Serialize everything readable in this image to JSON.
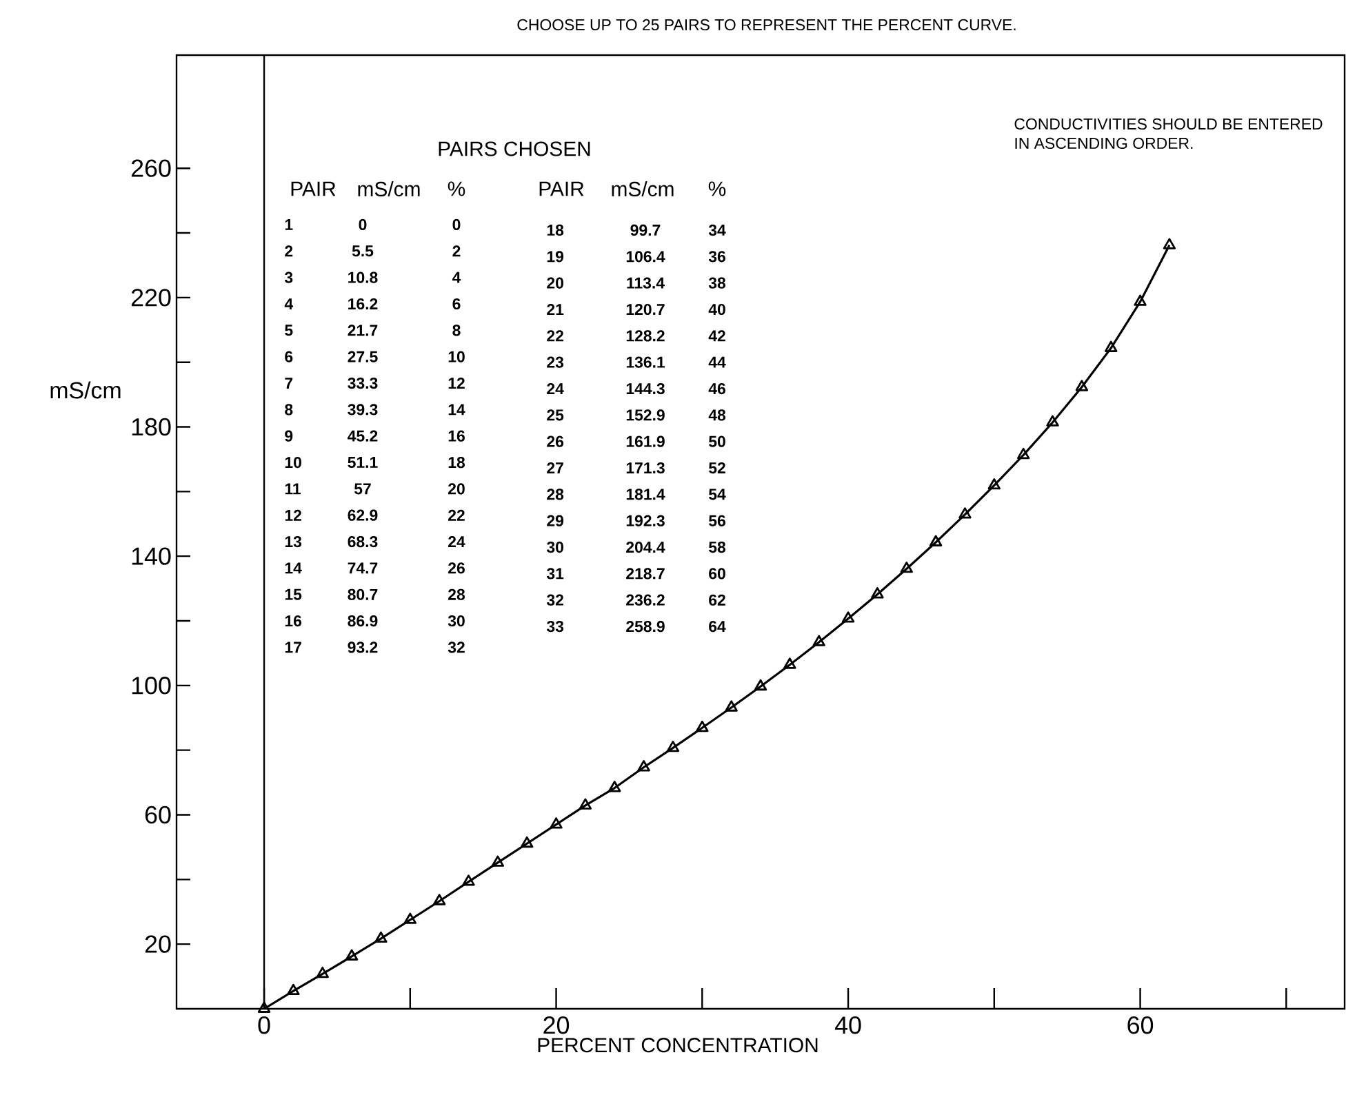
{
  "chart_data": {
    "type": "line",
    "xlabel": "PERCENT CONCENTRATION",
    "ylabel": "mS/cm",
    "xlim": [
      -6,
      74
    ],
    "ylim": [
      0,
      295
    ],
    "xticks": [
      0,
      {
        "value": 10,
        "label": null
      },
      20,
      {
        "value": 30,
        "label": null
      },
      40,
      {
        "value": 50,
        "label": null
      },
      60,
      {
        "value": 70,
        "label": null
      }
    ],
    "yticks": [
      20,
      {
        "value": 40,
        "label": null
      },
      60,
      {
        "value": 80,
        "label": null
      },
      100,
      {
        "value": 120,
        "label": null
      },
      140,
      {
        "value": 160,
        "label": null
      },
      180,
      {
        "value": 200,
        "label": null
      },
      220,
      {
        "value": 240,
        "label": null
      },
      260
    ],
    "ref_lines": [
      {
        "axis": "x",
        "value": 0
      }
    ],
    "marker": "triangle",
    "line_style": "solid",
    "annotations": [
      "CHOOSE UP TO 25 PAIRS TO REPRESENT THE PERCENT CURVE.",
      "CONDUCTIVITIES SHOULD BE ENTERED",
      "IN ASCENDING ORDER.",
      "PAIRS CHOSEN",
      "PAIR",
      "mS/cm",
      "%",
      "1",
      "0",
      "0",
      "2",
      "5.5",
      "2",
      "3",
      "10.8",
      "4",
      "4",
      "16.2",
      "6",
      "5",
      "21.7",
      "8",
      "6",
      "27.5",
      "10",
      "7",
      "33.3",
      "12",
      "8",
      "39.3",
      "14",
      "9",
      "45.2",
      "16",
      "10",
      "51.1",
      "18",
      "11",
      "57",
      "20",
      "12",
      "62.9",
      "22",
      "13",
      "68.3",
      "24",
      "14",
      "74.7",
      "26",
      "15",
      "80.7",
      "28",
      "16",
      "86.9",
      "30",
      "17",
      "93.2",
      "32",
      "18",
      "99.7",
      "34",
      "19",
      "106.4",
      "36",
      "20",
      "113.4",
      "38",
      "21",
      "120.7",
      "40",
      "22",
      "128.2",
      "42",
      "23",
      "136.1",
      "44",
      "24",
      "144.3",
      "46",
      "25",
      "152.9",
      "48",
      "26",
      "161.9",
      "50",
      "27",
      "171.3",
      "52",
      "28",
      "181.4",
      "54",
      "29",
      "192.3",
      "56",
      "30",
      "204.4",
      "58",
      "31",
      "218.7",
      "60",
      "32",
      "236.2",
      "62",
      "33",
      "258.9",
      "64"
    ],
    "series": [
      {
        "color": "#000000",
        "x": [
          0,
          2,
          4,
          6,
          8,
          10,
          12,
          14,
          16,
          18,
          20,
          22,
          24,
          26,
          28,
          30,
          32,
          34,
          36,
          38,
          40,
          42,
          44,
          46,
          48,
          50,
          52,
          54,
          56,
          58,
          60,
          62
        ],
        "values": [
          0,
          5.5,
          10.8,
          16.2,
          21.7,
          27.5,
          33.3,
          39.3,
          45.2,
          51.1,
          57,
          62.9,
          68.3,
          74.7,
          80.7,
          86.9,
          93.2,
          99.7,
          106.4,
          113.4,
          120.7,
          128.2,
          136.1,
          144.3,
          152.9,
          161.9,
          171.3,
          181.4,
          192.3,
          204.4,
          218.7,
          236.2
        ]
      }
    ]
  }
}
